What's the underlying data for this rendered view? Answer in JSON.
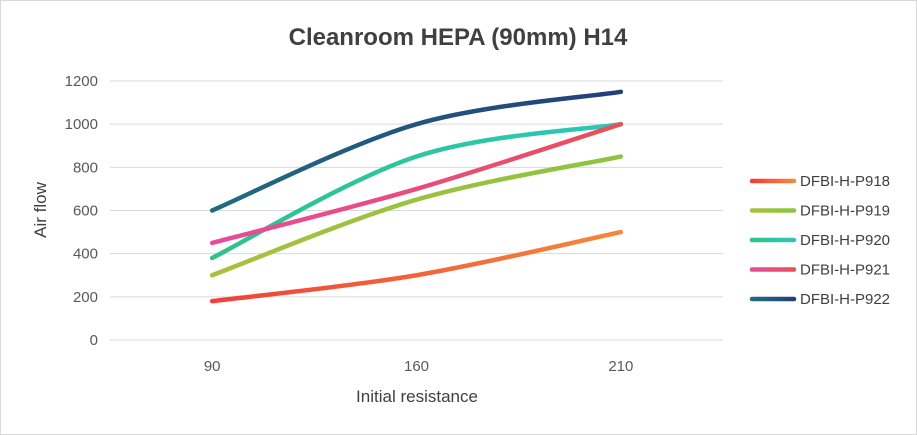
{
  "chart_data": {
    "type": "line",
    "title": "Cleanroom HEPA (90mm) H14",
    "xlabel": "Initial resistance",
    "ylabel": "Air flow",
    "categories": [
      "90",
      "160",
      "210"
    ],
    "ylim": [
      0,
      1200
    ],
    "yticks": [
      0,
      200,
      400,
      600,
      800,
      1000,
      1200
    ],
    "grid": true,
    "smooth": true,
    "legend_position": "right",
    "series": [
      {
        "name": "DFBI-H-P918",
        "values": [
          180,
          300,
          500
        ],
        "colors": [
          "#f0403a",
          "#f5883a"
        ]
      },
      {
        "name": "DFBI-H-P919",
        "values": [
          300,
          650,
          850
        ],
        "colors": [
          "#aabf40",
          "#8cc43f"
        ]
      },
      {
        "name": "DFBI-H-P920",
        "values": [
          380,
          850,
          1000
        ],
        "colors": [
          "#2ec38a",
          "#2cc7b9"
        ]
      },
      {
        "name": "DFBI-H-P921",
        "values": [
          450,
          700,
          1000
        ],
        "colors": [
          "#e84a9c",
          "#e8505a"
        ]
      },
      {
        "name": "DFBI-H-P922",
        "values": [
          600,
          1000,
          1150
        ],
        "colors": [
          "#216b80",
          "#223f7a"
        ]
      }
    ]
  }
}
